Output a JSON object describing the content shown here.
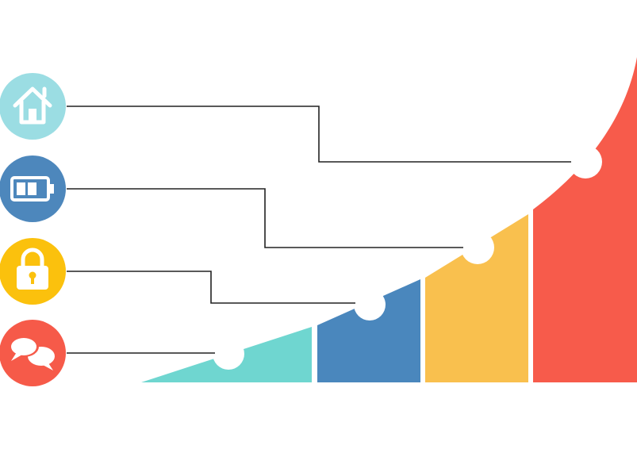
{
  "colors": {
    "teal": "#6fd6d0",
    "blue": "#4a87bd",
    "yellow": "#f9c04e",
    "red": "#f75b4b",
    "light_blue_icon_bg": "#9bdde3",
    "steel_blue_icon_bg": "#4d87bc",
    "amber_icon_bg": "#fbc10d",
    "coral_icon_bg": "#f65a49",
    "connector_line": "#222222",
    "glyph": "#ffffff"
  },
  "steps": [
    {
      "id": "step-1",
      "color": "teal",
      "icon": "chat-bubbles-icon"
    },
    {
      "id": "step-2",
      "color": "blue",
      "icon": "padlock-icon"
    },
    {
      "id": "step-3",
      "color": "yellow",
      "icon": "battery-icon"
    },
    {
      "id": "step-4",
      "color": "red",
      "icon": "home-icon"
    }
  ]
}
